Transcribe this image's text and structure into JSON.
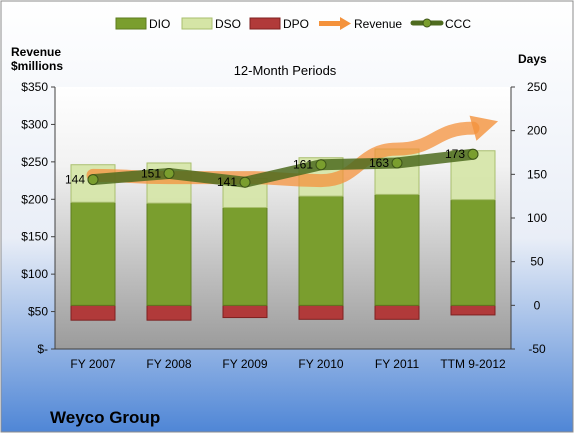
{
  "company": "Weyco Group",
  "chart_data": {
    "type": "bar",
    "title": "12-Month Periods",
    "categories": [
      "FY 2007",
      "FY 2008",
      "FY 2009",
      "FY 2010",
      "FY 2011",
      "TTM 9-2012"
    ],
    "left_axis": {
      "label_line1": "Revenue",
      "label_line2": "$millions",
      "ylim": [
        0,
        350
      ],
      "ticks": [
        0,
        50,
        100,
        150,
        200,
        250,
        300,
        350
      ],
      "tick_labels": [
        "$-",
        "$50",
        "$100",
        "$150",
        "$200",
        "$250",
        "$300",
        "$350"
      ]
    },
    "right_axis": {
      "label": "Days",
      "ylim": [
        -50,
        250
      ],
      "ticks": [
        -50,
        0,
        50,
        100,
        150,
        200,
        250
      ],
      "tick_labels": [
        "-50",
        "0",
        "50",
        "100",
        "150",
        "200",
        "250"
      ]
    },
    "series": [
      {
        "name": "DIO",
        "type": "bar",
        "axis": "right",
        "color": "#7a9e2e",
        "values": [
          118,
          117,
          112,
          125,
          127,
          121
        ]
      },
      {
        "name": "DSO",
        "type": "bar",
        "axis": "right",
        "color": "#d5e5a6",
        "values": [
          43,
          46,
          33,
          44,
          52,
          56
        ]
      },
      {
        "name": "DPO",
        "type": "bar",
        "axis": "right",
        "color": "#b13a3a",
        "values": [
          -17,
          -17,
          -14,
          -16,
          -16,
          -11
        ]
      },
      {
        "name": "Revenue",
        "type": "arrow-line",
        "axis": "left",
        "color": "#f4923c",
        "values": [
          232,
          229,
          229,
          225,
          267,
          295
        ]
      },
      {
        "name": "CCC",
        "type": "line",
        "axis": "right",
        "color": "#4e6b1f",
        "values": [
          144,
          151,
          141,
          161,
          163,
          173
        ]
      }
    ],
    "data_labels": [
      "144",
      "151",
      "141",
      "161",
      "163",
      "173"
    ],
    "legend_position": "top",
    "grid": false
  }
}
